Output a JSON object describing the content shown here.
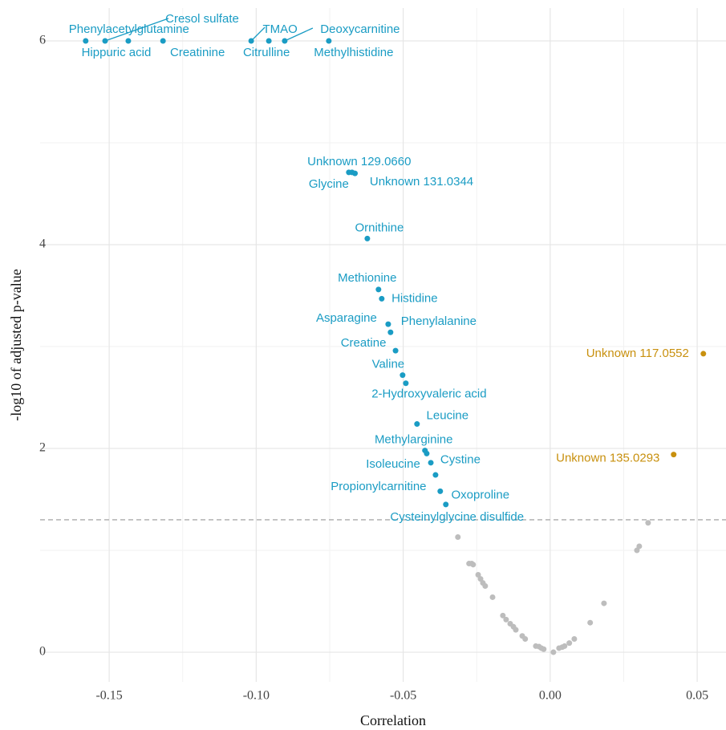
{
  "chart_data": {
    "type": "scatter",
    "xlabel": "Correlation",
    "ylabel": "-log10 of adjusted p-value",
    "xlim": [
      -0.1735,
      0.0598
    ],
    "ylim": [
      -0.291,
      6.323
    ],
    "xticks": [
      -0.15,
      {
        "value": -0.1,
        "label": "-0.10"
      },
      {
        "value": -0.05,
        "label": "-0.05"
      },
      {
        "value": 0,
        "label": "0.00"
      },
      0.05
    ],
    "yticks": [
      0,
      2,
      4,
      6
    ],
    "xminor": [
      -0.125,
      -0.075,
      -0.025,
      0.025
    ],
    "yminor": [
      1,
      3,
      5
    ],
    "grid": true,
    "threshold": 1.3,
    "series": [
      {
        "color": "#1a9cc4",
        "x": [
          -0.158,
          -0.1514,
          -0.1435,
          -0.1317,
          -0.1017,
          -0.0957,
          -0.0903,
          -0.0753,
          -0.0685,
          -0.0674,
          -0.0664,
          -0.0622,
          -0.0584,
          -0.0573,
          -0.0551,
          -0.0543,
          -0.0526,
          -0.0502,
          -0.0491,
          -0.0453,
          -0.0426,
          -0.042,
          -0.0406,
          -0.039,
          -0.0374,
          -0.0355
        ],
        "y": [
          6,
          6,
          6,
          6,
          6,
          6,
          6,
          6,
          4.71,
          4.71,
          4.7,
          4.06,
          3.56,
          3.47,
          3.22,
          3.14,
          2.96,
          2.72,
          2.64,
          2.24,
          1.98,
          1.95,
          1.86,
          1.74,
          1.58,
          1.45
        ],
        "labels": [
          "Phenylacetylglutamine",
          "Cresol sulfate",
          "Hippuric acid",
          "Creatinine",
          "TMAO",
          "Citrulline",
          "Deoxycarnitine",
          "Methylhistidine",
          "Unknown 129.0660",
          "Glycine",
          "Unknown 131.0344",
          "Ornithine",
          "Methionine",
          "Histidine",
          "Asparagine",
          "Phenylalanine",
          "Creatine",
          "Valine",
          "2-Hydroxyvaleric acid",
          "Leucine",
          "Methylarginine",
          "Cystine",
          "Isoleucine",
          "Propionylcarnitine",
          "Oxoproline",
          "Cysteinylglycine disulfide"
        ]
      },
      {
        "color": "#c8900e",
        "x": [
          0.0521,
          0.042
        ],
        "y": [
          2.93,
          1.94
        ],
        "labels": [
          "Unknown 117.0552",
          "Unknown 135.0293"
        ]
      },
      {
        "color": "#bdbdbd",
        "x": [
          -0.0314,
          -0.0276,
          -0.0267,
          -0.0262,
          -0.0245,
          -0.0237,
          -0.0229,
          -0.0221,
          -0.0196,
          -0.0161,
          -0.015,
          -0.0136,
          -0.0125,
          -0.0117,
          -0.0095,
          -0.0085,
          -0.0049,
          -0.0038,
          -0.003,
          -0.0022,
          0.0011,
          0.003,
          0.0041,
          0.0049,
          0.0065,
          0.0082,
          0.0136,
          0.0183,
          0.0295,
          0.0303,
          0.0333
        ],
        "y": [
          1.13,
          0.87,
          0.87,
          0.86,
          0.76,
          0.72,
          0.68,
          0.65,
          0.54,
          0.36,
          0.32,
          0.28,
          0.25,
          0.22,
          0.16,
          0.13,
          0.06,
          0.055,
          0.04,
          0.03,
          0,
          0.04,
          0.05,
          0.06,
          0.09,
          0.13,
          0.29,
          0.48,
          1.0,
          1.04,
          1.27
        ]
      }
    ]
  }
}
